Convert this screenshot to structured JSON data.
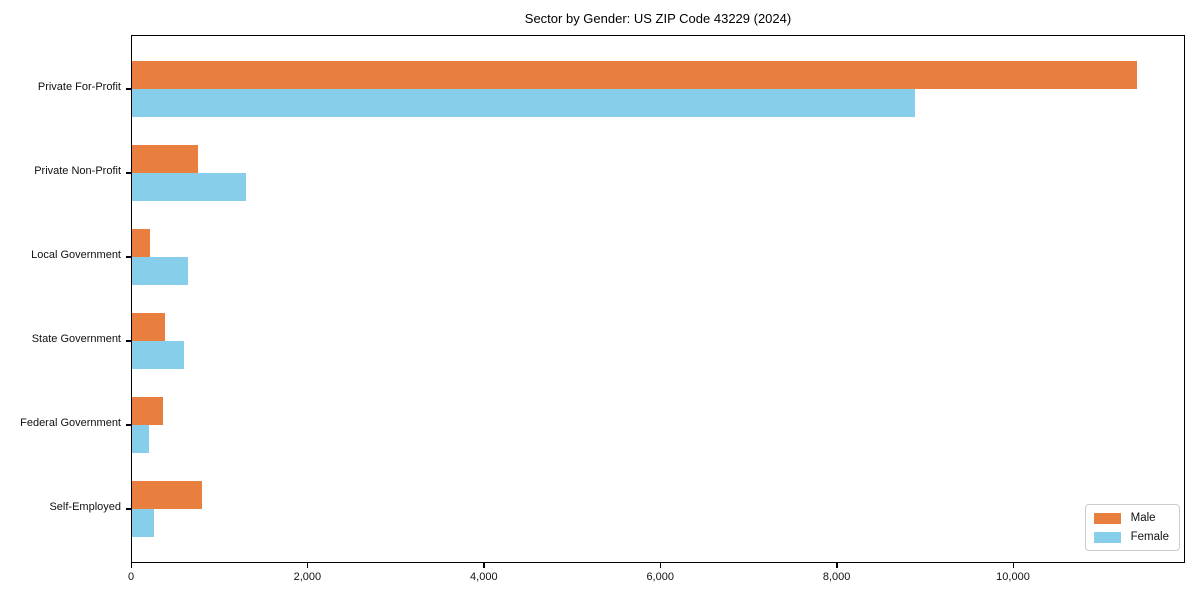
{
  "title": "Sector by Gender: US ZIP Code 43229 (2024)",
  "chart_data": {
    "type": "bar",
    "orientation": "horizontal",
    "title": "Sector by Gender: US ZIP Code 43229 (2024)",
    "categories": [
      "Private For-Profit",
      "Private Non-Profit",
      "Local Government",
      "State Government",
      "Federal Government",
      "Self-Employed"
    ],
    "series": [
      {
        "name": "Male",
        "color": "#e87f3e",
        "values": [
          11390,
          745,
          207,
          378,
          355,
          794
        ]
      },
      {
        "name": "Female",
        "color": "#87ceeb",
        "values": [
          8878,
          1293,
          631,
          593,
          196,
          246
        ]
      }
    ],
    "xlim": [
      0,
      11950
    ],
    "xticks": [
      0,
      2000,
      4000,
      6000,
      8000,
      10000
    ],
    "xtick_labels": [
      "0",
      "2,000",
      "4,000",
      "6,000",
      "8,000",
      "10,000"
    ],
    "xlabel": "",
    "ylabel": "",
    "grid": false,
    "legend_position": "lower right",
    "axis_color": "#000000",
    "background_color": "#ffffff"
  }
}
